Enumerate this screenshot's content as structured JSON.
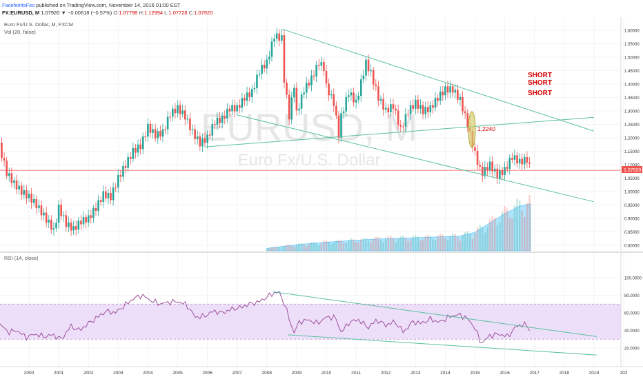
{
  "header": {
    "author": "FacefeiritsFes",
    "published": "published on TradingView.com, November 14, 2016 01:00 EST",
    "symbol": "FX:EURUSD, M",
    "last": "1.07920",
    "change": "▼ −0.00618 (−0.57%)",
    "o_label": "O:",
    "o_value": "1.07798",
    "h_label": "H:",
    "h_value": "1.12994",
    "l_label": "L:",
    "l_value": "1.07728",
    "c_label": "C:",
    "c_value": "1.07920"
  },
  "main_pane": {
    "title": "Euro Fx/U.S. Dollar, M, FXCM",
    "volume_label": "Vol (20, false)",
    "watermark_symbol": "EURUSD, M",
    "watermark_name": "Euro Fx/U.S. Dollar",
    "price_badge": "1.07920",
    "annotation_level": "1,2240",
    "short_labels": [
      "SHORT",
      "SHORT",
      "SHORT"
    ]
  },
  "rsi_pane": {
    "title": "RSI (14, close)"
  },
  "colors": {
    "up": "#26a69a",
    "down": "#ef5350",
    "trendline": "#5bbf9f",
    "rsi_line": "#9c4f9c",
    "rsi_band": "#e9d7f7",
    "volume_ma": "#4fc3f7",
    "price_line": "#ef5350",
    "short_text": "#d50000",
    "ellipse": "#b5a42f"
  },
  "chart_data": [
    {
      "type": "candlestick",
      "title": "Euro Fx/U.S. Dollar, M, FXCM",
      "y_ticks": [
        "1.60000",
        "1.55000",
        "1.50000",
        "1.45000",
        "1.40000",
        "1.35000",
        "1.30000",
        "1.25000",
        "1.20000",
        "1.15000",
        "1.10000",
        "1.05000",
        "1.00000",
        "0.95000",
        "0.90000",
        "0.85000",
        "0.80000"
      ],
      "ylim": [
        0.78,
        1.63
      ],
      "x_ticks": [
        "2000",
        "2001",
        "2002",
        "2003",
        "2004",
        "2005",
        "2006",
        "2007",
        "2008",
        "2009",
        "2010",
        "2011",
        "2012",
        "2013",
        "2014",
        "2015",
        "2016",
        "2017",
        "2018",
        "2019",
        "202"
      ],
      "close_series": {
        "x": [
          1999.0,
          1999.25,
          1999.5,
          1999.75,
          2000.0,
          2000.25,
          2000.5,
          2000.75,
          2000.83,
          2001.0,
          2001.25,
          2001.5,
          2001.75,
          2002.0,
          2002.25,
          2002.5,
          2002.75,
          2003.0,
          2003.25,
          2003.5,
          2003.75,
          2004.0,
          2004.25,
          2004.5,
          2004.75,
          2005.0,
          2005.25,
          2005.5,
          2005.75,
          2006.0,
          2006.25,
          2006.5,
          2006.75,
          2007.0,
          2007.25,
          2007.5,
          2007.75,
          2008.0,
          2008.25,
          2008.5,
          2008.58,
          2008.75,
          2008.92,
          2009.0,
          2009.25,
          2009.5,
          2009.75,
          2009.92,
          2010.0,
          2010.25,
          2010.42,
          2010.5,
          2010.75,
          2011.0,
          2011.33,
          2011.5,
          2011.75,
          2012.0,
          2012.25,
          2012.5,
          2012.75,
          2013.0,
          2013.25,
          2013.5,
          2013.75,
          2014.0,
          2014.25,
          2014.5,
          2014.75,
          2015.0,
          2015.17,
          2015.25,
          2015.5,
          2015.75,
          2016.0,
          2016.25,
          2016.5,
          2016.75,
          2016.87
        ],
        "y": [
          1.17,
          1.07,
          1.03,
          1.0,
          0.98,
          0.95,
          0.91,
          0.87,
          0.85,
          0.94,
          0.88,
          0.86,
          0.89,
          0.9,
          0.94,
          0.99,
          0.98,
          1.05,
          1.1,
          1.15,
          1.17,
          1.24,
          1.21,
          1.22,
          1.29,
          1.31,
          1.28,
          1.22,
          1.18,
          1.2,
          1.26,
          1.27,
          1.31,
          1.31,
          1.35,
          1.37,
          1.45,
          1.48,
          1.58,
          1.57,
          1.42,
          1.28,
          1.4,
          1.29,
          1.38,
          1.42,
          1.48,
          1.46,
          1.39,
          1.33,
          1.21,
          1.28,
          1.37,
          1.33,
          1.48,
          1.44,
          1.35,
          1.3,
          1.32,
          1.23,
          1.3,
          1.33,
          1.3,
          1.31,
          1.35,
          1.38,
          1.38,
          1.34,
          1.25,
          1.14,
          1.08,
          1.07,
          1.1,
          1.06,
          1.08,
          1.13,
          1.11,
          1.12,
          1.0792
        ]
      },
      "volume": {
        "x": [
          2008.0,
          2009.0,
          2010.0,
          2011.0,
          2012.0,
          2013.0,
          2014.0,
          2014.5,
          2015.0,
          2015.5,
          2016.0,
          2016.5,
          2016.87
        ],
        "ma": [
          0.4,
          1.0,
          1.4,
          1.7,
          2.0,
          2.1,
          2.3,
          2.4,
          3.0,
          4.5,
          6.0,
          7.2,
          7.6
        ]
      },
      "trendlines": [
        {
          "from": [
            2008.5,
            1.605
          ],
          "to": [
            2019.0,
            1.225
          ]
        },
        {
          "from": [
            2005.9,
            1.166
          ],
          "to": [
            2019.0,
            1.276
          ]
        },
        {
          "from": [
            2007.0,
            1.285
          ],
          "to": [
            2019.0,
            0.962
          ]
        }
      ],
      "annotations": {
        "short_signal": 3,
        "level": 1.224
      },
      "price_line": 1.0792
    },
    {
      "type": "line",
      "title": "RSI (14, close)",
      "y_ticks": [
        "100.0000",
        "80.0000",
        "60.0000",
        "40.0000",
        "20.0000"
      ],
      "ylim": [
        0,
        100
      ],
      "band": [
        30,
        70
      ],
      "x": [
        1999.0,
        1999.3,
        1999.6,
        1999.9,
        2000.2,
        2000.5,
        2000.8,
        2001.1,
        2001.4,
        2001.7,
        2002.0,
        2002.3,
        2002.6,
        2002.9,
        2003.2,
        2003.5,
        2003.8,
        2004.1,
        2004.4,
        2004.7,
        2005.0,
        2005.3,
        2005.6,
        2005.9,
        2006.2,
        2006.5,
        2006.8,
        2007.1,
        2007.4,
        2007.7,
        2008.0,
        2008.2,
        2008.4,
        2008.6,
        2008.9,
        2009.1,
        2009.4,
        2009.7,
        2010.0,
        2010.3,
        2010.5,
        2010.8,
        2011.1,
        2011.4,
        2011.7,
        2012.0,
        2012.3,
        2012.6,
        2012.9,
        2013.2,
        2013.5,
        2013.8,
        2014.1,
        2014.4,
        2014.7,
        2015.0,
        2015.2,
        2015.5,
        2015.8,
        2016.1,
        2016.4,
        2016.7,
        2016.87
      ],
      "y": [
        48,
        38,
        40,
        32,
        36,
        33,
        35,
        30,
        45,
        40,
        48,
        55,
        62,
        60,
        68,
        76,
        80,
        74,
        70,
        72,
        73,
        69,
        55,
        56,
        62,
        60,
        64,
        66,
        70,
        72,
        78,
        82,
        84,
        70,
        37,
        50,
        52,
        48,
        55,
        55,
        38,
        50,
        52,
        43,
        52,
        46,
        50,
        38,
        50,
        48,
        53,
        49,
        55,
        58,
        55,
        43,
        25,
        34,
        36,
        33,
        45,
        47,
        40
      ]
    }
  ]
}
